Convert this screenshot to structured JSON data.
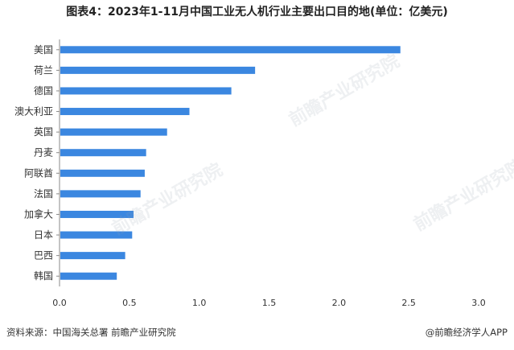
{
  "title": "图表4：2023年1-11月中国工业无人机行业主要出口目的地(单位：亿美元)",
  "source": "资料来源：中国海关总署 前瞻产业研究院",
  "brand": "@前瞻经济学人APP",
  "watermark_text": "前瞻产业研究院",
  "colors": {
    "bar": "#3b87e0",
    "axis": "#8a8a8a",
    "text": "#333333"
  },
  "chart_data": {
    "type": "bar",
    "orientation": "horizontal",
    "title": "图表4：2023年1-11月中国工业无人机行业主要出口目的地(单位：亿美元)",
    "categories": [
      "美国",
      "荷兰",
      "德国",
      "澳大利亚",
      "英国",
      "丹麦",
      "阿联酋",
      "法国",
      "加拿大",
      "日本",
      "巴西",
      "韩国"
    ],
    "values": [
      2.44,
      1.4,
      1.23,
      0.93,
      0.77,
      0.62,
      0.61,
      0.58,
      0.53,
      0.52,
      0.47,
      0.41
    ],
    "xticks": [
      "0.0",
      "0.5",
      "1.0",
      "1.5",
      "2.0",
      "2.5",
      "3.0"
    ],
    "xlim": [
      0,
      3.0
    ],
    "xlabel": "",
    "ylabel": "",
    "grid": false
  }
}
